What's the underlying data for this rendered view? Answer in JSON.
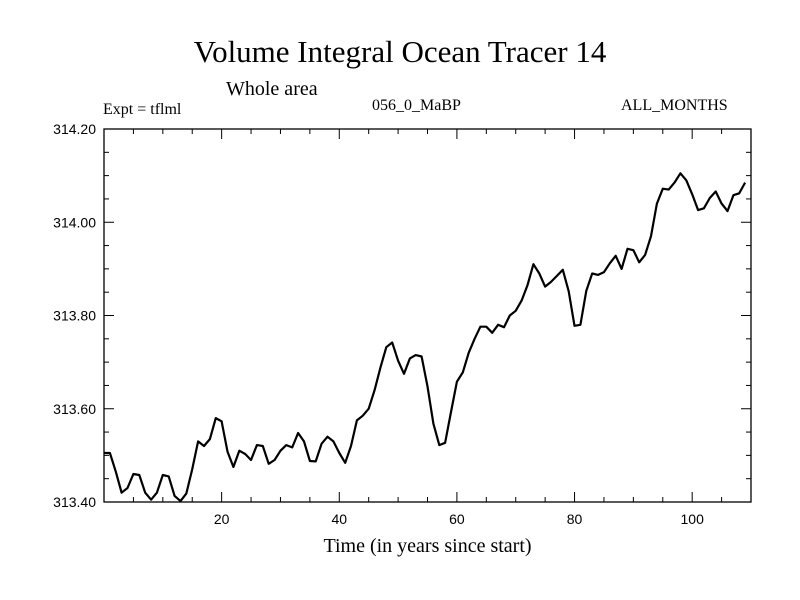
{
  "title": "Volume Integral Ocean Tracer 14",
  "subtitle": "Whole area",
  "expt_label": "Expt = tflml",
  "case_label": "056_0_MaBP",
  "months_label": "ALL_MONTHS",
  "chart_data": {
    "type": "line",
    "title": "Volume Integral Ocean Tracer 14",
    "xlabel": "Time (in years since start)",
    "ylabel": "",
    "xlim": [
      0,
      110
    ],
    "ylim": [
      313.4,
      314.2
    ],
    "xticks": [
      20,
      40,
      60,
      80,
      100
    ],
    "yticks": [
      "313.40",
      "313.60",
      "313.80",
      "314.00",
      "314.20"
    ],
    "grid": false,
    "series": [
      {
        "values": [
          [
            0,
            313.505
          ],
          [
            1,
            313.505
          ],
          [
            2,
            313.465
          ],
          [
            3,
            313.42
          ],
          [
            4,
            313.43
          ],
          [
            5,
            313.46
          ],
          [
            6,
            313.458
          ],
          [
            7,
            313.42
          ],
          [
            8,
            313.405
          ],
          [
            9,
            313.42
          ],
          [
            10,
            313.458
          ],
          [
            11,
            313.455
          ],
          [
            12,
            313.413
          ],
          [
            13,
            313.402
          ],
          [
            14,
            313.418
          ],
          [
            15,
            313.47
          ],
          [
            16,
            313.53
          ],
          [
            17,
            313.52
          ],
          [
            18,
            313.535
          ],
          [
            19,
            313.58
          ],
          [
            20,
            313.573
          ],
          [
            21,
            313.508
          ],
          [
            22,
            313.475
          ],
          [
            23,
            313.51
          ],
          [
            24,
            313.503
          ],
          [
            25,
            313.49
          ],
          [
            26,
            313.522
          ],
          [
            27,
            313.52
          ],
          [
            28,
            313.482
          ],
          [
            29,
            313.49
          ],
          [
            30,
            313.51
          ],
          [
            31,
            313.522
          ],
          [
            32,
            313.517
          ],
          [
            33,
            313.548
          ],
          [
            34,
            313.53
          ],
          [
            35,
            313.488
          ],
          [
            36,
            313.487
          ],
          [
            37,
            313.525
          ],
          [
            38,
            313.54
          ],
          [
            39,
            313.53
          ],
          [
            40,
            313.505
          ],
          [
            41,
            313.484
          ],
          [
            42,
            313.52
          ],
          [
            43,
            313.575
          ],
          [
            44,
            313.585
          ],
          [
            45,
            313.6
          ],
          [
            46,
            313.64
          ],
          [
            47,
            313.688
          ],
          [
            48,
            313.732
          ],
          [
            49,
            313.742
          ],
          [
            50,
            313.703
          ],
          [
            51,
            313.675
          ],
          [
            52,
            313.708
          ],
          [
            53,
            313.715
          ],
          [
            54,
            313.712
          ],
          [
            55,
            313.648
          ],
          [
            56,
            313.568
          ],
          [
            57,
            313.522
          ],
          [
            58,
            313.527
          ],
          [
            59,
            313.593
          ],
          [
            60,
            313.658
          ],
          [
            61,
            313.678
          ],
          [
            62,
            313.72
          ],
          [
            63,
            313.75
          ],
          [
            64,
            313.776
          ],
          [
            65,
            313.776
          ],
          [
            66,
            313.763
          ],
          [
            67,
            313.78
          ],
          [
            68,
            313.775
          ],
          [
            69,
            313.8
          ],
          [
            70,
            313.81
          ],
          [
            71,
            313.832
          ],
          [
            72,
            313.865
          ],
          [
            73,
            313.91
          ],
          [
            74,
            313.89
          ],
          [
            75,
            313.862
          ],
          [
            76,
            313.872
          ],
          [
            77,
            313.885
          ],
          [
            78,
            313.898
          ],
          [
            79,
            313.852
          ],
          [
            80,
            313.778
          ],
          [
            81,
            313.78
          ],
          [
            82,
            313.853
          ],
          [
            83,
            313.89
          ],
          [
            84,
            313.887
          ],
          [
            85,
            313.893
          ],
          [
            86,
            313.912
          ],
          [
            87,
            313.928
          ],
          [
            88,
            313.9
          ],
          [
            89,
            313.943
          ],
          [
            90,
            313.94
          ],
          [
            91,
            313.914
          ],
          [
            92,
            313.93
          ],
          [
            93,
            313.97
          ],
          [
            94,
            314.04
          ],
          [
            95,
            314.072
          ],
          [
            96,
            314.07
          ],
          [
            97,
            314.085
          ],
          [
            98,
            314.105
          ],
          [
            99,
            314.09
          ],
          [
            100,
            314.06
          ],
          [
            101,
            314.026
          ],
          [
            102,
            314.03
          ],
          [
            103,
            314.052
          ],
          [
            104,
            314.066
          ],
          [
            105,
            314.04
          ],
          [
            106,
            314.024
          ],
          [
            107,
            314.058
          ],
          [
            108,
            314.062
          ],
          [
            109,
            314.085
          ]
        ]
      }
    ]
  }
}
